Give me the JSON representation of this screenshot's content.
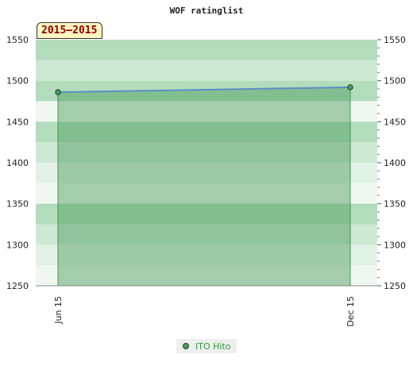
{
  "chart_data": {
    "type": "area",
    "title": "WOF ratinglist",
    "period_label": "2015–2015",
    "x_categories": [
      "Jun 15",
      "Dec 15"
    ],
    "ylim": [
      1250,
      1550
    ],
    "y_ticks": [
      1250,
      1300,
      1350,
      1400,
      1450,
      1500,
      1550
    ],
    "grid": true,
    "legend_position": "bottom",
    "series": [
      {
        "name": "ITO Hito",
        "x": [
          "Jun 15",
          "Dec 15"
        ],
        "y": [
          1486,
          1492
        ],
        "color": "#4a9a5a",
        "line_color": "#5b8fc7"
      }
    ]
  }
}
